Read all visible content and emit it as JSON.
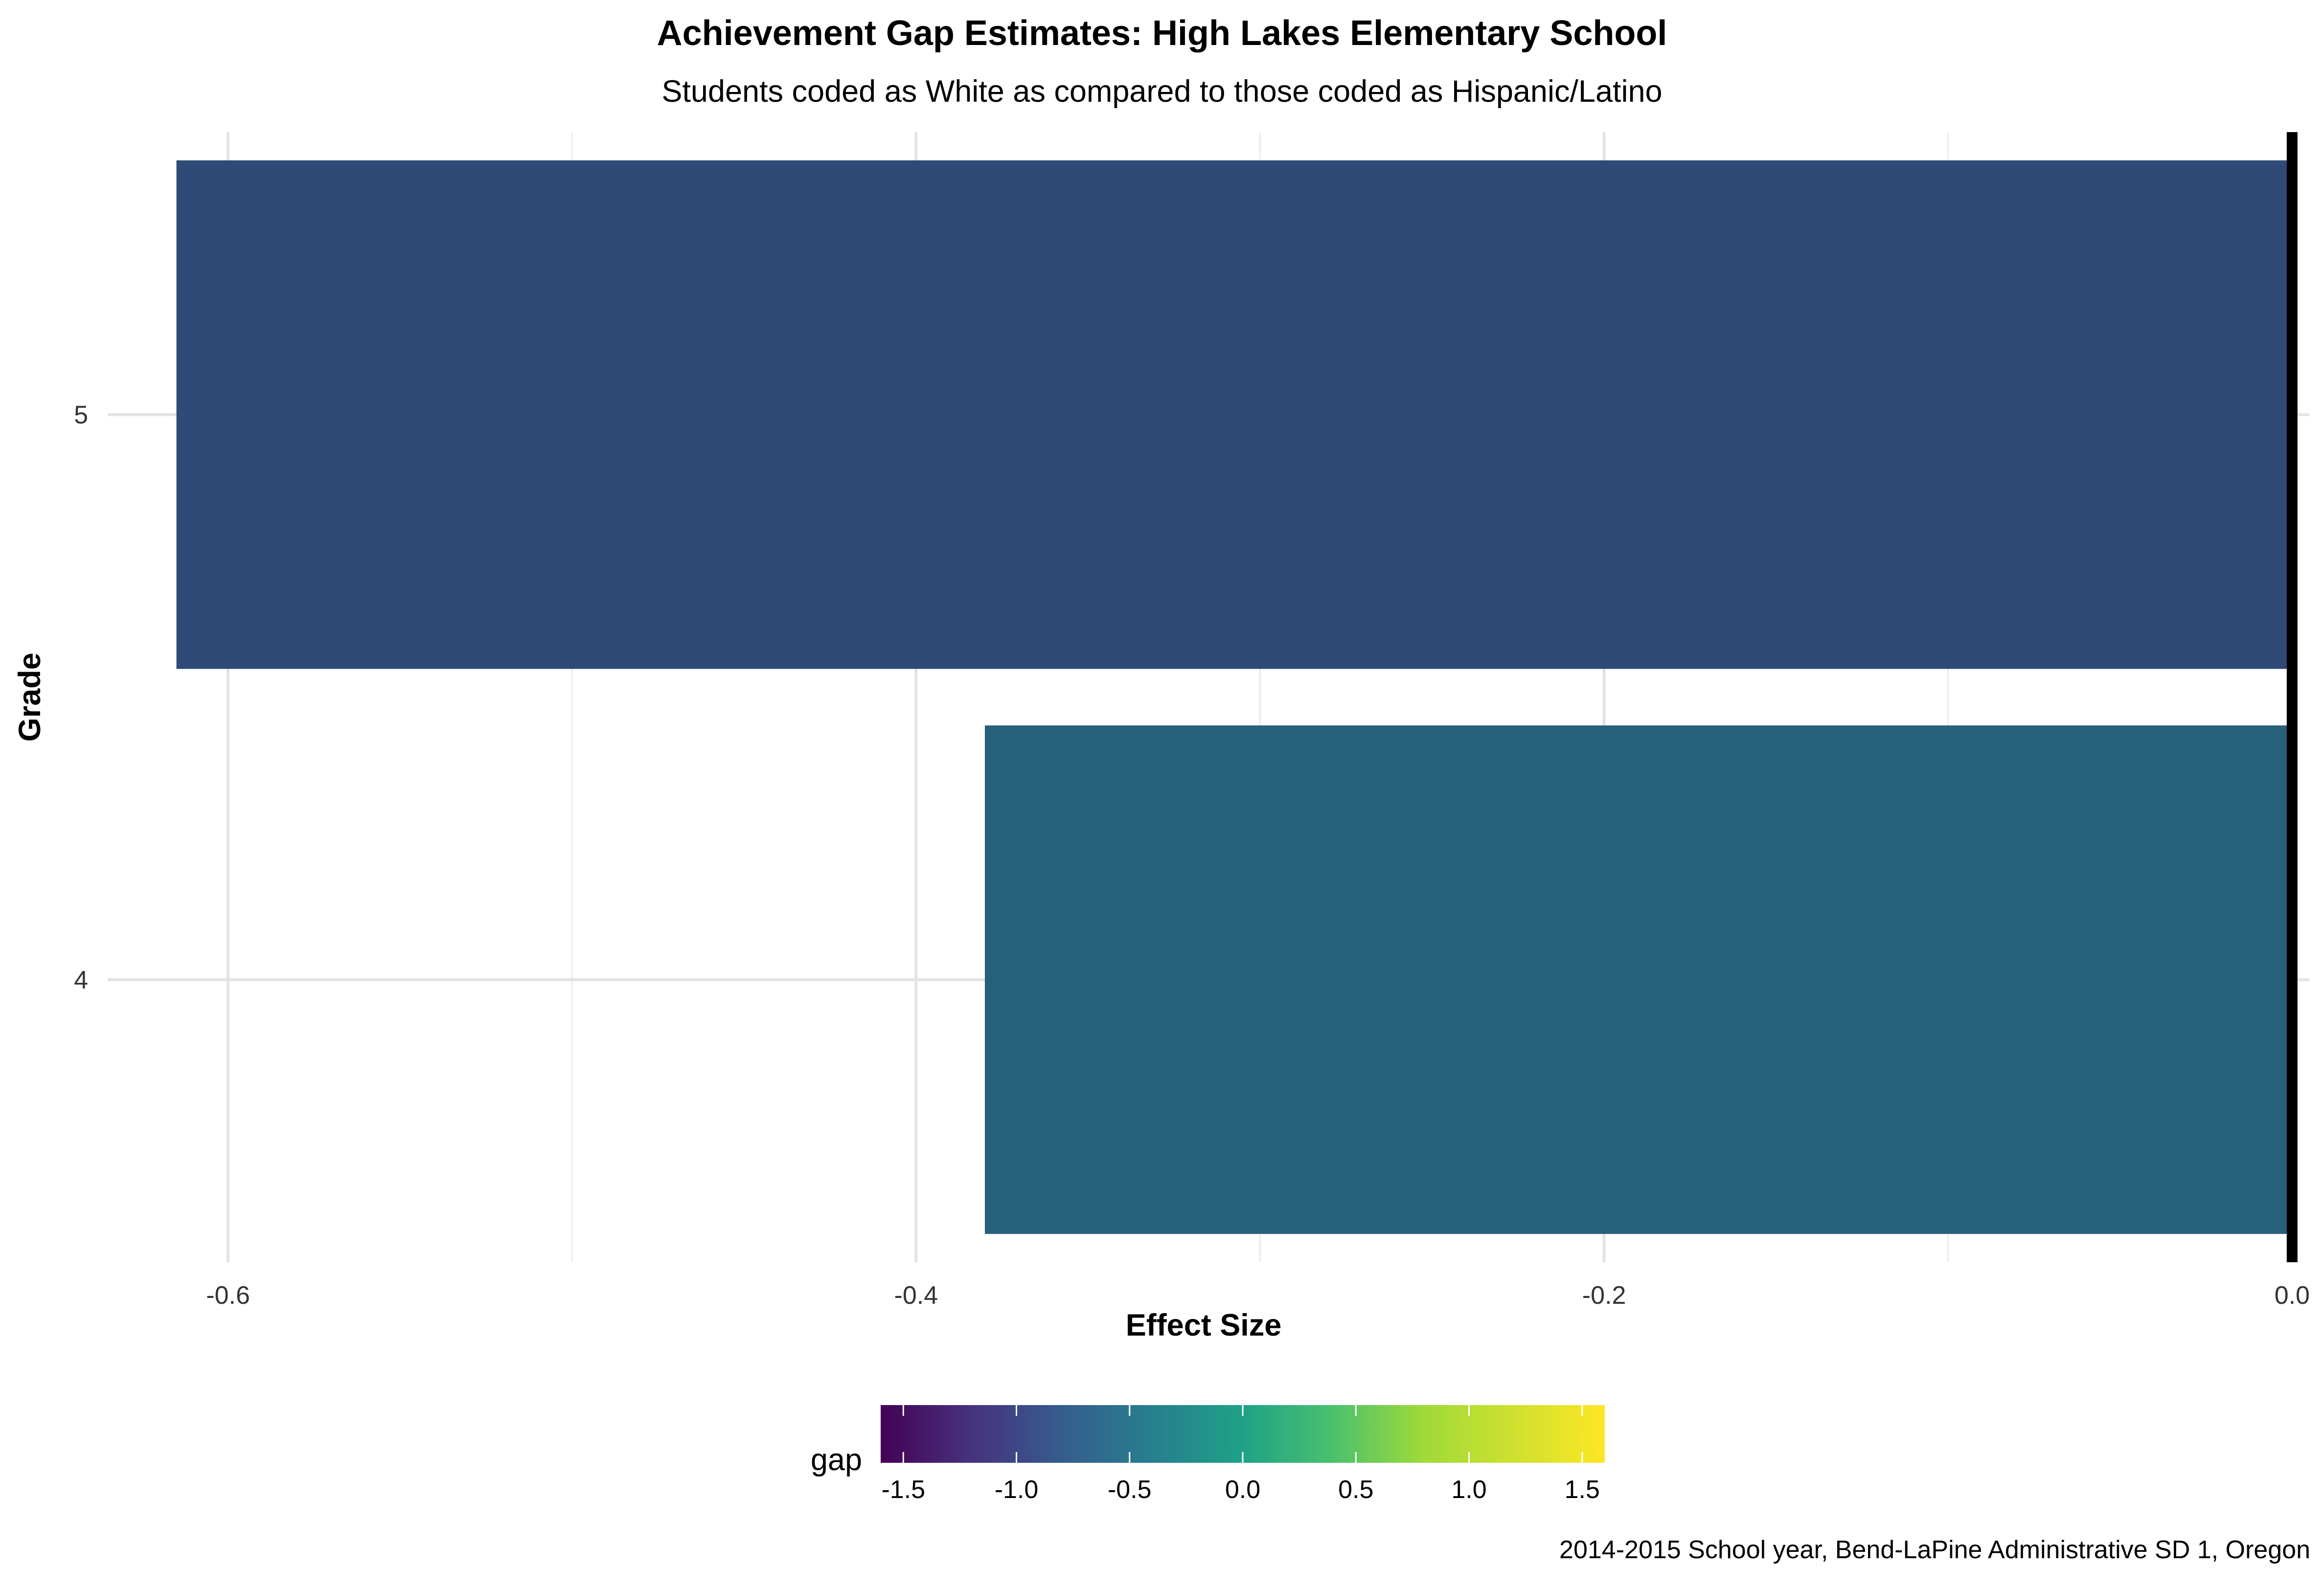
{
  "chart_data": {
    "type": "bar",
    "orientation": "horizontal",
    "title": "Achievement Gap Estimates: High Lakes Elementary School",
    "subtitle": "Students coded as White as compared to those coded as Hispanic/Latino",
    "caption": "2014-2015 School year, Bend-LaPine Administrative SD 1, Oregon",
    "xlabel": "Effect Size",
    "ylabel": "Grade",
    "categories": [
      "4",
      "5"
    ],
    "values": [
      -0.38,
      -0.615
    ],
    "xlim": [
      -0.635,
      0.005
    ],
    "x_ticks": [
      -0.6,
      -0.4,
      -0.2,
      0.0
    ],
    "x_tick_labels": [
      "-0.6",
      "-0.4",
      "-0.2",
      "0.0"
    ],
    "reference_line_x": 0.0,
    "grid": true,
    "bar_colors": [
      "#27607a",
      "#2f4a77"
    ],
    "legend": {
      "title": "gap",
      "position": "bottom",
      "type": "colorbar",
      "palette": "viridis",
      "range": [
        -1.6,
        1.6
      ],
      "ticks": [
        -1.5,
        -1.0,
        -0.5,
        0.0,
        0.5,
        1.0,
        1.5
      ],
      "tick_labels": [
        "-1.5",
        "-1.0",
        "-0.5",
        "0.0",
        "0.5",
        "1.0",
        "1.5"
      ]
    }
  }
}
